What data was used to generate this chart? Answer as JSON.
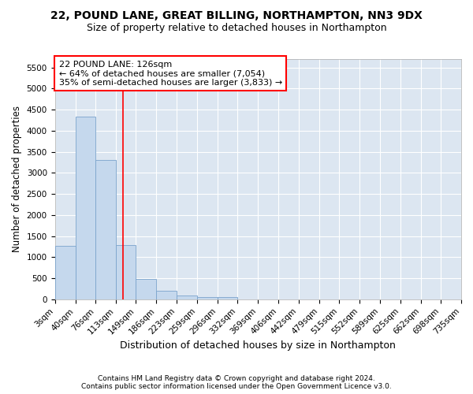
{
  "title": "22, POUND LANE, GREAT BILLING, NORTHAMPTON, NN3 9DX",
  "subtitle": "Size of property relative to detached houses in Northampton",
  "xlabel": "Distribution of detached houses by size in Northampton",
  "ylabel": "Number of detached properties",
  "footer_line1": "Contains HM Land Registry data © Crown copyright and database right 2024.",
  "footer_line2": "Contains public sector information licensed under the Open Government Licence v3.0.",
  "annotation_line1": "22 POUND LANE: 126sqm",
  "annotation_line2": "← 64% of detached houses are smaller (7,054)",
  "annotation_line3": "35% of semi-detached houses are larger (3,833) →",
  "bin_edges": [
    3,
    40,
    76,
    113,
    149,
    186,
    223,
    259,
    296,
    332,
    369,
    406,
    442,
    479,
    515,
    552,
    589,
    625,
    662,
    698,
    735
  ],
  "bar_heights": [
    1260,
    4330,
    3300,
    1280,
    490,
    210,
    90,
    60,
    50,
    0,
    0,
    0,
    0,
    0,
    0,
    0,
    0,
    0,
    0,
    0
  ],
  "bar_color": "#c5d8ed",
  "bar_edge_color": "#7aa3cc",
  "background_color": "#dce6f1",
  "grid_color": "#ffffff",
  "red_line_x": 126,
  "ylim": [
    0,
    5700
  ],
  "yticks": [
    0,
    500,
    1000,
    1500,
    2000,
    2500,
    3000,
    3500,
    4000,
    4500,
    5000,
    5500
  ],
  "title_fontsize": 10,
  "subtitle_fontsize": 9,
  "xlabel_fontsize": 9,
  "ylabel_fontsize": 8.5,
  "tick_fontsize": 7.5,
  "annotation_fontsize": 8,
  "footer_fontsize": 6.5
}
